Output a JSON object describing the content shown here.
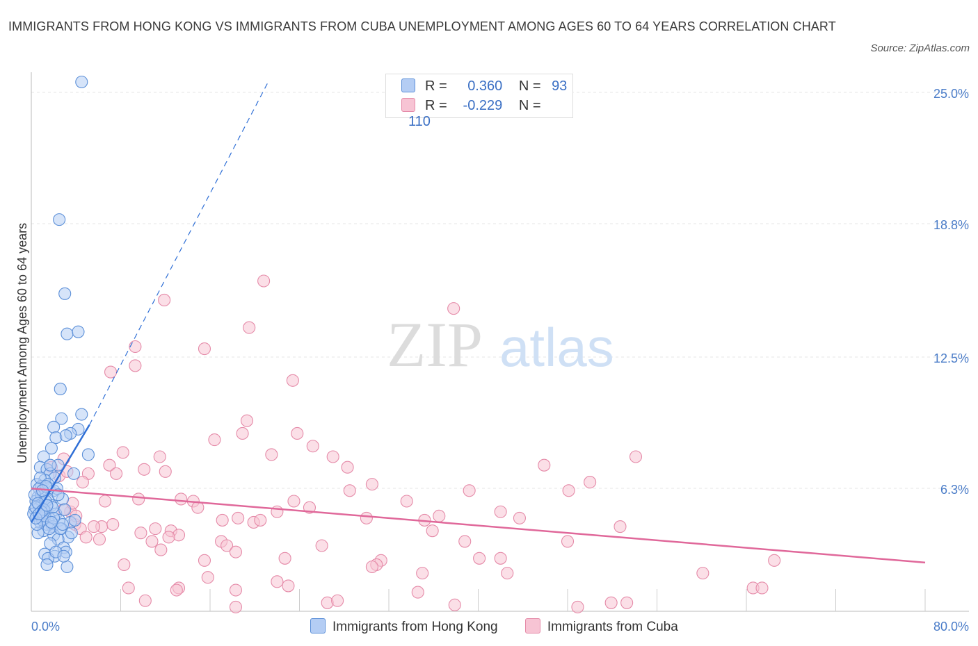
{
  "title": "IMMIGRANTS FROM HONG KONG VS IMMIGRANTS FROM CUBA UNEMPLOYMENT AMONG AGES 60 TO 64 YEARS CORRELATION CHART",
  "source": "Source: ZipAtlas.com",
  "watermark": {
    "zip": "ZIP",
    "atlas": "atlas"
  },
  "legend": {
    "r_label": "R =",
    "n_label": "N =",
    "hong_kong": {
      "r": "0.360",
      "n": "93"
    },
    "cuba": {
      "r": "-0.229",
      "n": "110"
    }
  },
  "chart_data": {
    "type": "scatter",
    "ylabel": "Unemployment Among Ages 60 to 64 years",
    "xlabel": "",
    "xlim": [
      0,
      80
    ],
    "ylim": [
      0,
      25
    ],
    "x_tick_labels": {
      "left": "0.0%",
      "right": "80.0%"
    },
    "y_ticks": [
      {
        "value": 6.3,
        "label": "6.3%"
      },
      {
        "value": 12.5,
        "label": "12.5%"
      },
      {
        "value": 18.8,
        "label": "18.8%"
      },
      {
        "value": 25.0,
        "label": "25.0%"
      }
    ],
    "colors": {
      "hong_kong": "#5b8fd8",
      "hong_kong_fill": "#b4cdf4",
      "hong_kong_line": "#2f6fd6",
      "cuba": "#e58aa8",
      "cuba_fill": "#f7c4d4",
      "cuba_line": "#e0689a",
      "tick_label": "#4a7cc8"
    },
    "series": [
      {
        "name": "Immigrants from Hong Kong",
        "trend": {
          "x0": 0.0,
          "y0": 4.2,
          "x1": 5.2,
          "y1": 8.8,
          "dash_to_x": 21.2,
          "dash_to_y": 25.0
        },
        "points": [
          [
            4.5,
            25.0
          ],
          [
            2.5,
            18.5
          ],
          [
            3.0,
            15.0
          ],
          [
            3.2,
            13.1
          ],
          [
            4.2,
            13.2
          ],
          [
            2.6,
            10.5
          ],
          [
            4.5,
            9.3
          ],
          [
            2.7,
            9.1
          ],
          [
            2.0,
            8.7
          ],
          [
            4.2,
            8.6
          ],
          [
            3.5,
            8.4
          ],
          [
            2.2,
            8.2
          ],
          [
            3.1,
            8.3
          ],
          [
            1.8,
            7.7
          ],
          [
            5.1,
            7.4
          ],
          [
            1.1,
            7.3
          ],
          [
            2.4,
            6.9
          ],
          [
            0.8,
            6.8
          ],
          [
            1.4,
            6.7
          ],
          [
            1.7,
            6.5
          ],
          [
            2.1,
            6.3
          ],
          [
            1.2,
            6.2
          ],
          [
            3.8,
            6.5
          ],
          [
            0.5,
            6.0
          ],
          [
            0.9,
            5.9
          ],
          [
            1.6,
            5.8
          ],
          [
            2.0,
            5.7
          ],
          [
            1.1,
            5.6
          ],
          [
            0.6,
            5.4
          ],
          [
            1.5,
            5.3
          ],
          [
            2.8,
            5.3
          ],
          [
            0.4,
            5.2
          ],
          [
            1.0,
            5.1
          ],
          [
            1.8,
            5.0
          ],
          [
            0.7,
            4.9
          ],
          [
            0.3,
            4.8
          ],
          [
            1.3,
            4.7
          ],
          [
            2.2,
            4.6
          ],
          [
            0.5,
            4.5
          ],
          [
            1.0,
            4.4
          ],
          [
            1.6,
            4.4
          ],
          [
            2.5,
            4.3
          ],
          [
            0.8,
            4.2
          ],
          [
            1.4,
            4.1
          ],
          [
            3.5,
            4.2
          ],
          [
            0.2,
            4.6
          ],
          [
            1.9,
            4.0
          ],
          [
            2.7,
            3.9
          ],
          [
            1.1,
            3.8
          ],
          [
            0.6,
            3.7
          ],
          [
            2.0,
            3.6
          ],
          [
            3.3,
            3.5
          ],
          [
            2.4,
            3.4
          ],
          [
            1.7,
            3.2
          ],
          [
            2.9,
            3.0
          ],
          [
            3.1,
            2.8
          ],
          [
            1.2,
            2.7
          ],
          [
            2.1,
            2.6
          ],
          [
            1.5,
            2.5
          ],
          [
            3.2,
            2.1
          ],
          [
            1.4,
            2.2
          ],
          [
            0.9,
            5.5
          ],
          [
            1.3,
            5.2
          ],
          [
            0.4,
            4.9
          ],
          [
            2.3,
            5.8
          ],
          [
            1.7,
            6.9
          ],
          [
            0.7,
            5.8
          ],
          [
            3.0,
            4.8
          ],
          [
            1.0,
            4.3
          ],
          [
            0.3,
            5.5
          ],
          [
            2.6,
            3.9
          ],
          [
            1.9,
            4.9
          ],
          [
            0.6,
            5.1
          ],
          [
            1.2,
            4.5
          ],
          [
            2.2,
            2.8
          ],
          [
            3.9,
            4.3
          ],
          [
            0.8,
            6.3
          ],
          [
            1.5,
            6.0
          ],
          [
            2.8,
            4.1
          ],
          [
            0.5,
            4.1
          ],
          [
            1.1,
            4.8
          ],
          [
            2.0,
            4.4
          ],
          [
            3.6,
            3.7
          ],
          [
            1.6,
            3.9
          ],
          [
            0.9,
            4.7
          ],
          [
            2.4,
            5.5
          ],
          [
            1.3,
            5.9
          ],
          [
            0.4,
            4.4
          ],
          [
            1.8,
            4.2
          ],
          [
            2.9,
            2.6
          ],
          [
            1.0,
            5.7
          ],
          [
            0.7,
            4.6
          ],
          [
            1.4,
            5.0
          ]
        ]
      },
      {
        "name": "Immigrants from Cuba",
        "trend": {
          "x0": 0.0,
          "y0": 5.8,
          "x1": 80.0,
          "y1": 2.3
        },
        "points": [
          [
            20.8,
            15.6
          ],
          [
            11.9,
            14.7
          ],
          [
            37.8,
            14.3
          ],
          [
            19.5,
            13.4
          ],
          [
            9.3,
            12.5
          ],
          [
            15.5,
            12.4
          ],
          [
            9.3,
            11.6
          ],
          [
            7.1,
            11.3
          ],
          [
            23.4,
            10.9
          ],
          [
            19.3,
            9.0
          ],
          [
            18.9,
            8.4
          ],
          [
            23.8,
            8.4
          ],
          [
            16.4,
            8.1
          ],
          [
            25.2,
            7.8
          ],
          [
            8.2,
            7.5
          ],
          [
            21.5,
            7.4
          ],
          [
            11.5,
            7.3
          ],
          [
            27.0,
            7.3
          ],
          [
            54.1,
            7.3
          ],
          [
            2.9,
            7.2
          ],
          [
            7.0,
            6.9
          ],
          [
            28.3,
            6.8
          ],
          [
            45.9,
            6.9
          ],
          [
            10.1,
            6.7
          ],
          [
            12.0,
            6.6
          ],
          [
            5.1,
            6.5
          ],
          [
            7.6,
            6.5
          ],
          [
            2.5,
            6.4
          ],
          [
            30.5,
            6.0
          ],
          [
            50.0,
            6.1
          ],
          [
            28.5,
            5.7
          ],
          [
            39.2,
            5.7
          ],
          [
            48.1,
            5.7
          ],
          [
            9.6,
            5.3
          ],
          [
            13.4,
            5.3
          ],
          [
            14.5,
            5.2
          ],
          [
            23.5,
            5.2
          ],
          [
            33.6,
            5.2
          ],
          [
            6.6,
            5.2
          ],
          [
            14.9,
            4.9
          ],
          [
            24.9,
            4.9
          ],
          [
            42.0,
            4.7
          ],
          [
            3.5,
            4.7
          ],
          [
            36.5,
            4.5
          ],
          [
            18.5,
            4.4
          ],
          [
            17.1,
            4.3
          ],
          [
            30.0,
            4.4
          ],
          [
            35.2,
            4.3
          ],
          [
            43.7,
            4.4
          ],
          [
            19.9,
            4.2
          ],
          [
            20.5,
            4.3
          ],
          [
            3.9,
            4.1
          ],
          [
            6.3,
            4.0
          ],
          [
            52.7,
            4.0
          ],
          [
            11.1,
            3.9
          ],
          [
            4.4,
            3.9
          ],
          [
            12.5,
            3.8
          ],
          [
            35.9,
            3.8
          ],
          [
            13.2,
            3.6
          ],
          [
            4.9,
            3.5
          ],
          [
            6.1,
            3.4
          ],
          [
            10.8,
            3.3
          ],
          [
            17.0,
            3.3
          ],
          [
            48.0,
            3.3
          ],
          [
            38.8,
            3.3
          ],
          [
            17.5,
            3.1
          ],
          [
            11.6,
            2.9
          ],
          [
            18.3,
            2.8
          ],
          [
            40.1,
            2.5
          ],
          [
            42.0,
            2.5
          ],
          [
            15.5,
            2.4
          ],
          [
            22.7,
            2.5
          ],
          [
            31.3,
            2.4
          ],
          [
            66.5,
            2.4
          ],
          [
            30.9,
            2.2
          ],
          [
            30.5,
            2.1
          ],
          [
            8.3,
            2.2
          ],
          [
            35.0,
            1.8
          ],
          [
            42.6,
            1.8
          ],
          [
            60.1,
            1.8
          ],
          [
            15.8,
            1.6
          ],
          [
            22.0,
            1.4
          ],
          [
            8.7,
            1.1
          ],
          [
            13.2,
            1.1
          ],
          [
            13.0,
            1.0
          ],
          [
            18.3,
            1.0
          ],
          [
            23.0,
            1.2
          ],
          [
            34.6,
            0.9
          ],
          [
            64.6,
            1.1
          ],
          [
            65.4,
            1.1
          ],
          [
            10.2,
            0.5
          ],
          [
            26.5,
            0.4
          ],
          [
            37.9,
            0.3
          ],
          [
            51.9,
            0.4
          ],
          [
            53.3,
            0.4
          ],
          [
            18.3,
            0.2
          ],
          [
            48.9,
            0.2
          ],
          [
            4.0,
            4.5
          ],
          [
            5.6,
            4.0
          ],
          [
            2.9,
            4.8
          ],
          [
            7.3,
            4.1
          ],
          [
            3.7,
            5.1
          ],
          [
            26.0,
            3.1
          ],
          [
            27.4,
            0.5
          ],
          [
            1.8,
            6.8
          ],
          [
            4.6,
            6.1
          ],
          [
            9.8,
            3.7
          ],
          [
            12.3,
            3.5
          ],
          [
            3.2,
            6.6
          ],
          [
            22.0,
            4.7
          ]
        ]
      }
    ]
  }
}
